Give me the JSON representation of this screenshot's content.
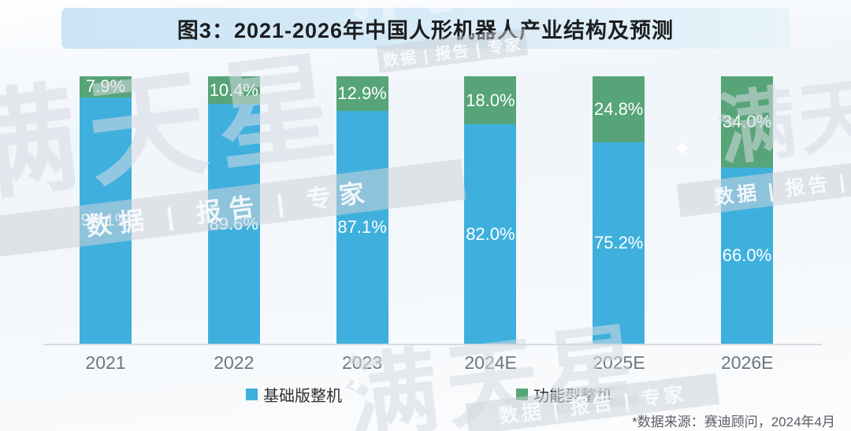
{
  "figure": {
    "title": "图3：2021-2026年中国人形机器人产业结构及预测",
    "source_note": "*数据来源：赛迪顾问，2024年4月"
  },
  "chart_data": {
    "type": "bar",
    "variant": "stacked-100-percent",
    "title": "图3：2021-2026年中国人形机器人产业结构及预测",
    "categories": [
      "2021",
      "2022",
      "2023",
      "2024E",
      "2025E",
      "2026E"
    ],
    "series": [
      {
        "name": "基础版整机",
        "color": "#3FB0DD",
        "values": [
          92.1,
          89.6,
          87.1,
          82.0,
          75.2,
          66.0
        ]
      },
      {
        "name": "功能型整机",
        "color": "#57A478",
        "values": [
          7.9,
          10.4,
          12.9,
          18.0,
          24.8,
          34.0
        ]
      }
    ],
    "value_suffix": "%",
    "ylim": [
      0,
      100
    ],
    "grid": false,
    "legend_position": "bottom",
    "axis_line_color": "#D7DBE0",
    "label_color": "#FFFFFF",
    "tick_label_color": "#6F767E"
  },
  "watermark": {
    "star": "✦",
    "text": "满天星",
    "tagline": "数据 | 报告 | 专家"
  }
}
